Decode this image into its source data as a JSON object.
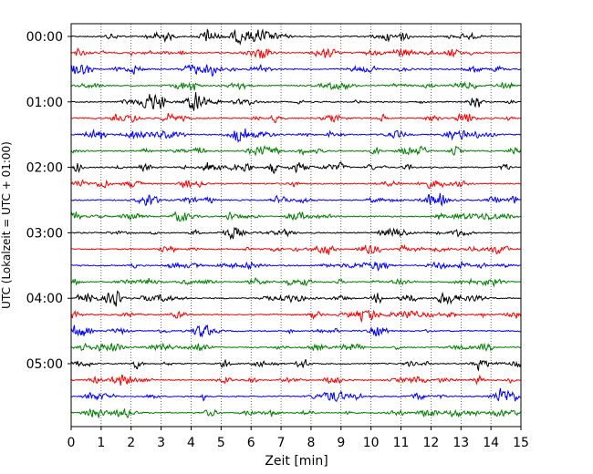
{
  "chart_data": {
    "type": "line",
    "subtype": "seismogram-helicorder",
    "xlabel": "Zeit  [min]",
    "ylabel": "UTC (Lokalzeit = UTC + 01:00)",
    "xlim": [
      0,
      15
    ],
    "x_ticks": [
      "0",
      "1",
      "2",
      "3",
      "4",
      "5",
      "6",
      "7",
      "8",
      "9",
      "10",
      "11",
      "12",
      "13",
      "14",
      "15"
    ],
    "y_tick_labels": [
      "00:00",
      "01:00",
      "02:00",
      "03:00",
      "04:00",
      "05:00"
    ],
    "y_tick_rows": [
      0,
      4,
      8,
      12,
      16,
      20
    ],
    "rows": 24,
    "minutes_per_row": 15,
    "color_cycle": [
      "#000000",
      "#ff0000",
      "#0000ff",
      "#008000"
    ],
    "grid": "vertical dotted at each minute",
    "legend": "none"
  }
}
